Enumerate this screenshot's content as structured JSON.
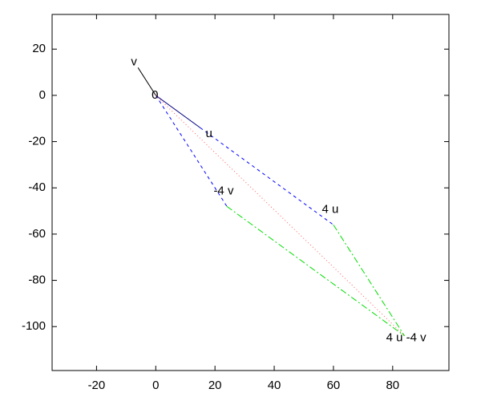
{
  "chart_data": {
    "type": "vector",
    "xlim": [
      -35,
      99
    ],
    "ylim": [
      -119,
      35
    ],
    "xticks": [
      -20,
      0,
      20,
      40,
      60,
      80
    ],
    "yticks": [
      20,
      0,
      -20,
      -40,
      -60,
      -80,
      -100
    ],
    "points": [
      {
        "label": "0",
        "x": 0,
        "y": 0
      },
      {
        "label": "v",
        "x": -6,
        "y": 12
      },
      {
        "label": "u",
        "x": 15,
        "y": -14
      },
      {
        "label": "4 u",
        "x": 60,
        "y": -56
      },
      {
        "label": "-4 v",
        "x": 24,
        "y": -48
      },
      {
        "label": "4 u -4 v",
        "x": 84,
        "y": -104
      }
    ],
    "series": [
      {
        "color": "#000080",
        "dash": "solid",
        "x": [
          0,
          15
        ],
        "y": [
          0,
          -14
        ]
      },
      {
        "color": "#000000",
        "dash": "solid",
        "x": [
          0,
          -6
        ],
        "y": [
          0,
          12
        ]
      },
      {
        "color": "#0000ff",
        "dash": "dashed",
        "x": [
          0,
          24
        ],
        "y": [
          0,
          -48
        ]
      },
      {
        "color": "#0000ff",
        "dash": "dashed",
        "x": [
          15,
          60
        ],
        "y": [
          -14,
          -56
        ]
      },
      {
        "color": "#00dd00",
        "dash": "dashdot",
        "x": [
          24,
          84
        ],
        "y": [
          -48,
          -104
        ]
      },
      {
        "color": "#00dd00",
        "dash": "dashdot",
        "x": [
          60,
          84
        ],
        "y": [
          -56,
          -104
        ]
      },
      {
        "color": "#ff6060",
        "dash": "dotted",
        "x": [
          0,
          84
        ],
        "y": [
          0,
          -104
        ]
      }
    ]
  }
}
